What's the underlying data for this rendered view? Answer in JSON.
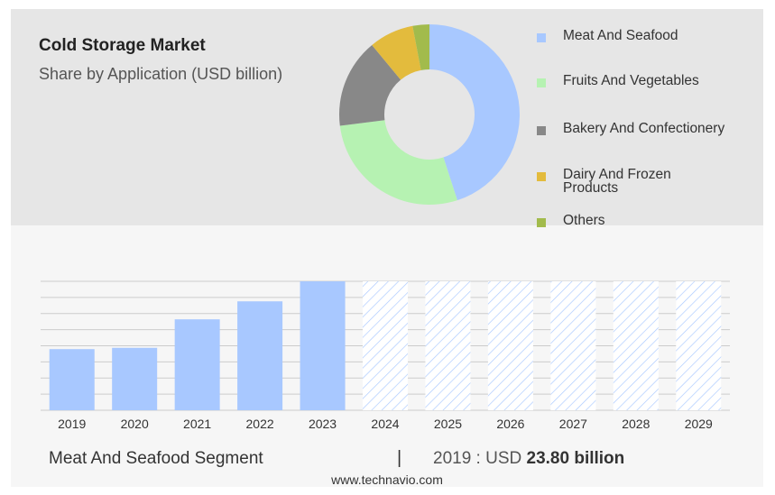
{
  "header": {
    "title": "Cold Storage Market",
    "subtitle": "Share by Application (USD billion)"
  },
  "chart_data": [
    {
      "type": "pie",
      "variant": "donut",
      "slices": [
        {
          "label": "Meat And Seafood",
          "value": 45,
          "color": "#a8c8ff"
        },
        {
          "label": "Fruits And Vegetables",
          "value": 28,
          "color": "#b6f2b2"
        },
        {
          "label": "Bakery And Confectionery",
          "value": 16,
          "color": "#888888"
        },
        {
          "label": "Dairy And Frozen Products",
          "value": 8,
          "color": "#e3bb3d"
        },
        {
          "label": "Others",
          "value": 3,
          "color": "#a2bb4c"
        }
      ],
      "legend_position": "right"
    },
    {
      "type": "bar",
      "categories": [
        "2019",
        "2020",
        "2021",
        "2022",
        "2023",
        "2024",
        "2025",
        "2026",
        "2027",
        "2028",
        "2029"
      ],
      "series": [
        {
          "values": [
            23.8,
            24.3,
            35.4,
            42.4,
            50.2,
            null,
            null,
            null,
            null,
            null,
            null
          ]
        }
      ],
      "forecast_categories": [
        "2024",
        "2025",
        "2026",
        "2027",
        "2028",
        "2029"
      ],
      "ylim": [
        0,
        50.2
      ],
      "grid": true,
      "colors": {
        "bar": "#a8c8ff",
        "forecast_hatch": "#a8c8ff",
        "grid": "#cccccc"
      }
    }
  ],
  "footer": {
    "segment": "Meat And Seafood Segment",
    "separator": "|",
    "value_prefix": "2019 : USD",
    "value_bold": "23.80 billion"
  },
  "source": "www.technavio.com"
}
